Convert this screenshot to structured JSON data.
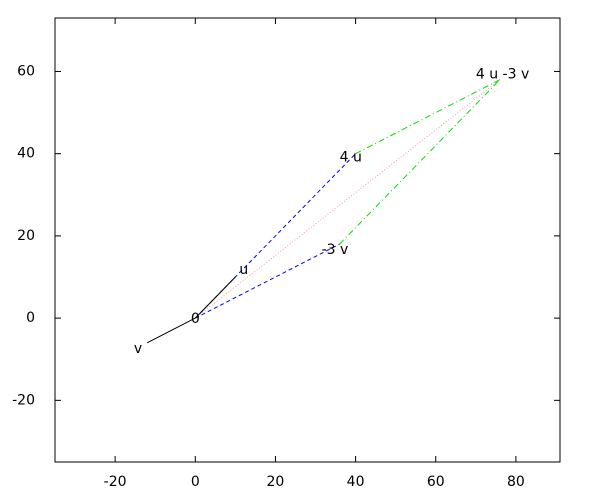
{
  "chart_data": {
    "type": "vector",
    "xlim": [
      -35,
      91
    ],
    "ylim": [
      -35,
      73
    ],
    "xticks": [
      -20,
      0,
      20,
      40,
      60,
      80
    ],
    "yticks": [
      -20,
      0,
      20,
      40,
      60
    ],
    "series": [
      {
        "x": [
          0,
          10
        ],
        "y": [
          0,
          10
        ],
        "color": "#000000",
        "style": "solid"
      },
      {
        "x": [
          0,
          -12
        ],
        "y": [
          0,
          -6
        ],
        "color": "#000000",
        "style": "solid"
      },
      {
        "x": [
          0,
          40
        ],
        "y": [
          0,
          40
        ],
        "color": "#0000ff",
        "style": "dashed"
      },
      {
        "x": [
          0,
          36
        ],
        "y": [
          0,
          18
        ],
        "color": "#0000ff",
        "style": "dashed"
      },
      {
        "x": [
          40,
          76
        ],
        "y": [
          40,
          58
        ],
        "color": "#00dd00",
        "style": "dashdot"
      },
      {
        "x": [
          36,
          76
        ],
        "y": [
          18,
          58
        ],
        "color": "#00dd00",
        "style": "dashdot"
      },
      {
        "x": [
          0,
          76
        ],
        "y": [
          0,
          58
        ],
        "color": "#ff9999",
        "style": "dotted"
      }
    ],
    "labels": [
      "0",
      "u",
      "v",
      "4 u",
      "-3 v",
      "4 u -3 v"
    ]
  }
}
